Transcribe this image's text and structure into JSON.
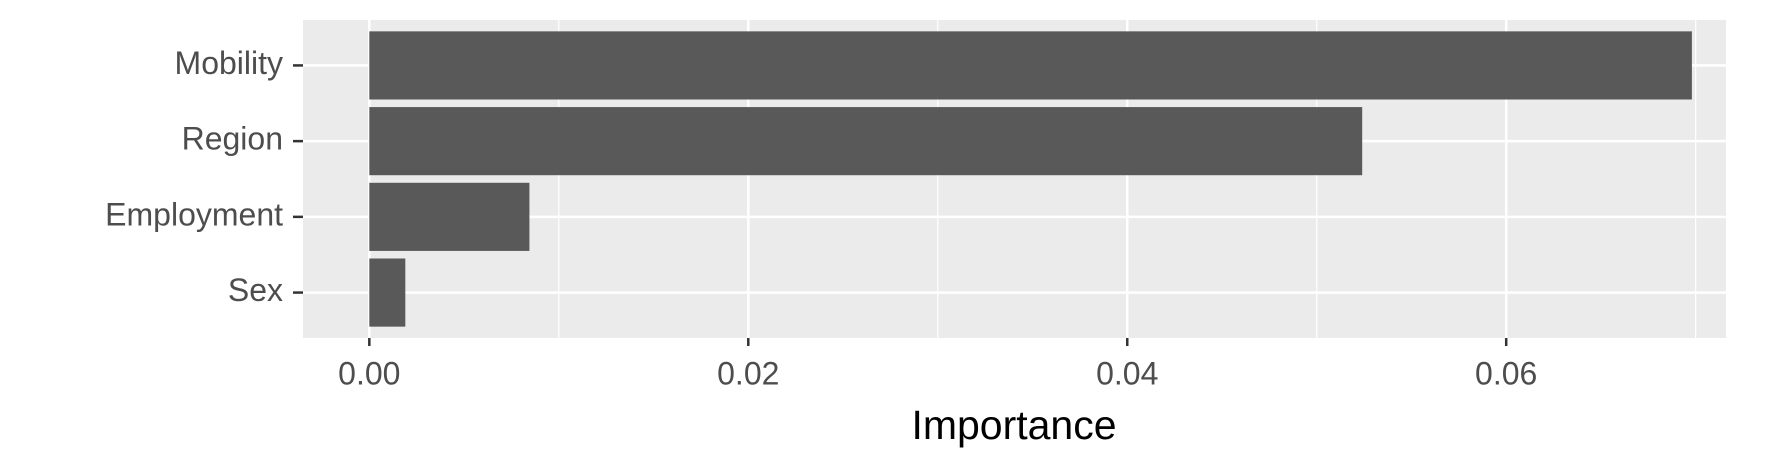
{
  "chart_data": {
    "type": "barh",
    "categories": [
      "Mobility",
      "Region",
      "Employment",
      "Sex"
    ],
    "values": [
      0.0698,
      0.0524,
      0.00845,
      0.0019
    ],
    "color": "#595959",
    "xlabel": "Importance",
    "xlim": [
      -0.0035,
      0.0716
    ],
    "xticks": [
      {
        "value": 0,
        "label": "0.00"
      },
      0.02,
      0.04,
      0.06
    ],
    "grid": true,
    "minor_grid": true
  }
}
